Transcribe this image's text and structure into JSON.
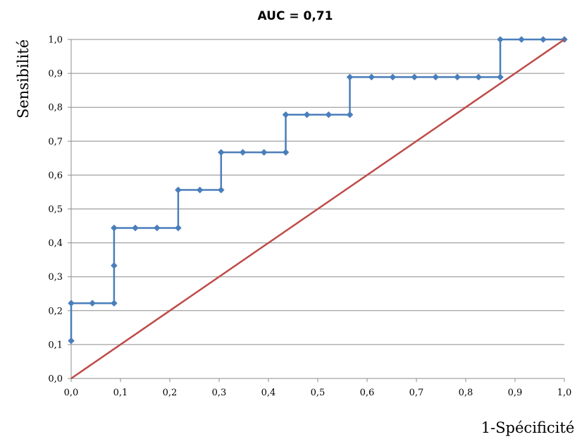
{
  "chart_data": {
    "type": "line",
    "title": "AUC = 0,71",
    "xlabel": "1-Spécificité",
    "ylabel": "Sensibilité",
    "xlim": [
      0,
      1
    ],
    "ylim": [
      0,
      1
    ],
    "x_ticks": [
      "0,0",
      "0,1",
      "0,2",
      "0,3",
      "0,4",
      "0,5",
      "0,6",
      "0,7",
      "0,8",
      "0,9",
      "1,0"
    ],
    "y_ticks": [
      "0,0",
      "0,1",
      "0,2",
      "0,3",
      "0,4",
      "0,5",
      "0,6",
      "0,7",
      "0,8",
      "0,9",
      "1,0"
    ],
    "grid": "horizontal",
    "legend": "none",
    "series": [
      {
        "role": "roc",
        "color": "#4a7ebb",
        "markers": "diamond",
        "x": [
          0,
          0,
          0.043,
          0.087,
          0.087,
          0.087,
          0.13,
          0.174,
          0.217,
          0.217,
          0.261,
          0.304,
          0.304,
          0.348,
          0.391,
          0.435,
          0.435,
          0.478,
          0.522,
          0.565,
          0.565,
          0.609,
          0.652,
          0.696,
          0.739,
          0.783,
          0.826,
          0.87,
          0.87,
          0.913,
          0.957,
          1.0
        ],
        "y": [
          0.111,
          0.222,
          0.222,
          0.222,
          0.333,
          0.444,
          0.444,
          0.444,
          0.444,
          0.556,
          0.556,
          0.556,
          0.667,
          0.667,
          0.667,
          0.667,
          0.778,
          0.778,
          0.778,
          0.778,
          0.889,
          0.889,
          0.889,
          0.889,
          0.889,
          0.889,
          0.889,
          0.889,
          1.0,
          1.0,
          1.0,
          1.0
        ]
      },
      {
        "role": "reference",
        "color": "#be4b48",
        "markers": "none",
        "x": [
          0,
          1
        ],
        "y": [
          0,
          1
        ]
      }
    ]
  }
}
